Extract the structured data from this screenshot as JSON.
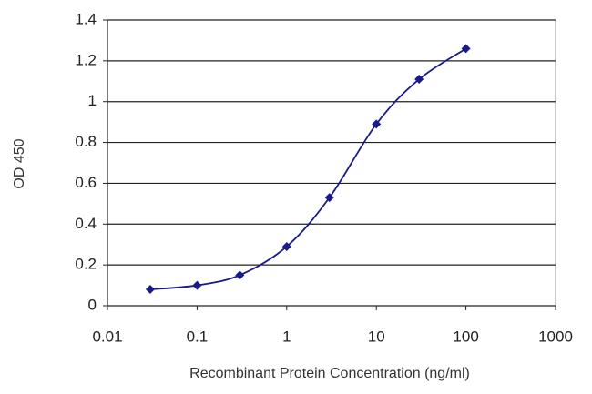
{
  "chart_data": {
    "type": "line",
    "x_label": "Recombinant Protein Concentration (ng/ml)",
    "y_label": "OD 450",
    "x": [
      0.03,
      0.1,
      0.3,
      1,
      3,
      10,
      30,
      100
    ],
    "series": [
      {
        "color": "#1a1a8c",
        "values": [
          0.08,
          0.1,
          0.15,
          0.29,
          0.53,
          0.89,
          1.11,
          1.26
        ]
      }
    ],
    "xlog": true,
    "xlim": [
      0.01,
      1000
    ],
    "xticks": [
      0.01,
      0.1,
      1,
      10,
      100,
      1000
    ],
    "ylim": [
      0,
      1.4
    ],
    "yticks": [
      0,
      0.2,
      0.4,
      0.6,
      0.8,
      1,
      1.2,
      1.4
    ],
    "grid": true
  }
}
